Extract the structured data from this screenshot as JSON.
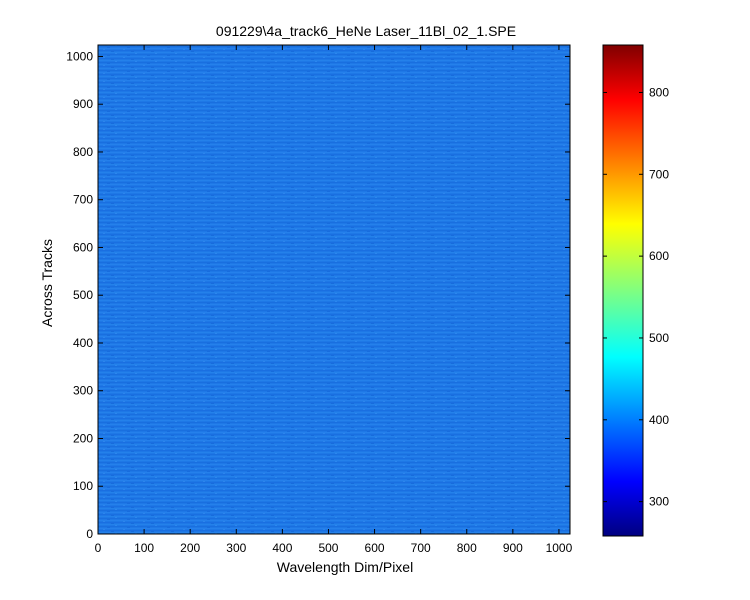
{
  "chart_data": {
    "type": "heatmap",
    "title": "091229\\4a_track6_HeNe Laser_11Bl_02_1.SPE",
    "xlabel": "Wavelength Dim/Pixel",
    "ylabel": "Across Tracks",
    "xlim": [
      0,
      1024
    ],
    "ylim": [
      0,
      1024
    ],
    "x_ticks": [
      0,
      100,
      200,
      300,
      400,
      500,
      600,
      700,
      800,
      900,
      1000
    ],
    "y_ticks": [
      0,
      100,
      200,
      300,
      400,
      500,
      600,
      700,
      800,
      900,
      1000
    ],
    "colorbar": {
      "colormap": "jet",
      "range": [
        258,
        858
      ],
      "ticks": [
        300,
        400,
        500,
        600,
        700,
        800
      ]
    },
    "field": {
      "dominant_value": 400,
      "value_range": [
        385,
        415
      ],
      "description_color": "#1E78E6"
    },
    "grid": false
  }
}
